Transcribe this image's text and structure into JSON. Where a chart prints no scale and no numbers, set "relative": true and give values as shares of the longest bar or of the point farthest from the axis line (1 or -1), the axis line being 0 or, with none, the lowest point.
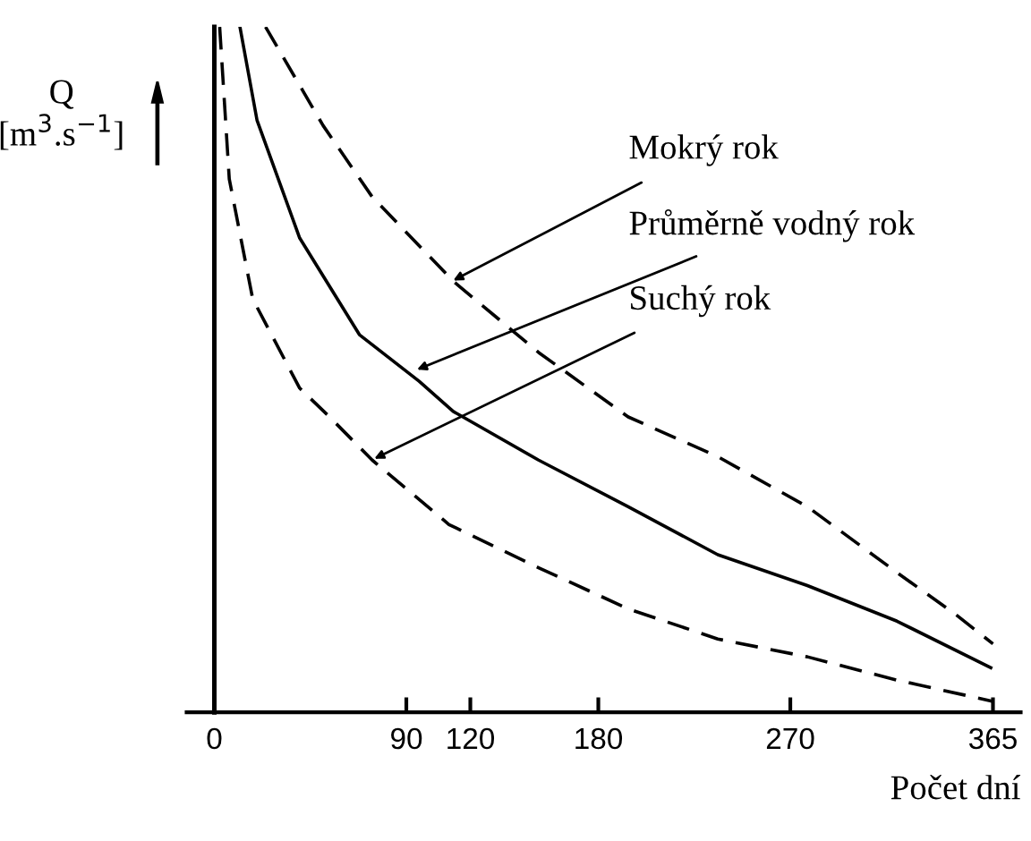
{
  "chart_data": {
    "type": "line",
    "relative": true,
    "ylabel": "Q\n[m$^{3}$.s$^{−1}$]",
    "xlabel": "Počet dní",
    "xlim": [
      -13,
      378
    ],
    "xticks": [
      0,
      90,
      120,
      180,
      270,
      365
    ],
    "legend": false,
    "marker": "none",
    "series": [
      {
        "color": "#000000",
        "line_style": "dashed",
        "x": [
          24,
          51,
          74,
          112,
          152,
          194,
          236,
          278,
          320,
          347,
          365
        ],
        "values": [
          1.0,
          0.856,
          0.752,
          0.629,
          0.525,
          0.431,
          0.373,
          0.3,
          0.204,
          0.144,
          0.1
        ]
      },
      {
        "color": "#000000",
        "line_style": "solid",
        "x": [
          12,
          20,
          40,
          68,
          96,
          112,
          152,
          194,
          236,
          278,
          320,
          364
        ],
        "values": [
          1.0,
          0.864,
          0.692,
          0.551,
          0.483,
          0.439,
          0.368,
          0.3,
          0.23,
          0.185,
          0.133,
          0.065
        ]
      },
      {
        "color": "#000000",
        "line_style": "dashed",
        "x": [
          2.5,
          7,
          18,
          40,
          54,
          74,
          110,
          152,
          194,
          236,
          278,
          320,
          365
        ],
        "values": [
          1.0,
          0.778,
          0.603,
          0.473,
          0.431,
          0.368,
          0.274,
          0.211,
          0.151,
          0.107,
          0.081,
          0.047,
          0.016
        ]
      }
    ],
    "annotations": [
      {
        "text": "Mokrý rok",
        "x": 112,
        "y": 0.63
      },
      {
        "text": "Průměrně vodný rok",
        "x": 95,
        "y": 0.5
      },
      {
        "text": "Suchý rok",
        "x": 75,
        "y": 0.37
      }
    ]
  }
}
